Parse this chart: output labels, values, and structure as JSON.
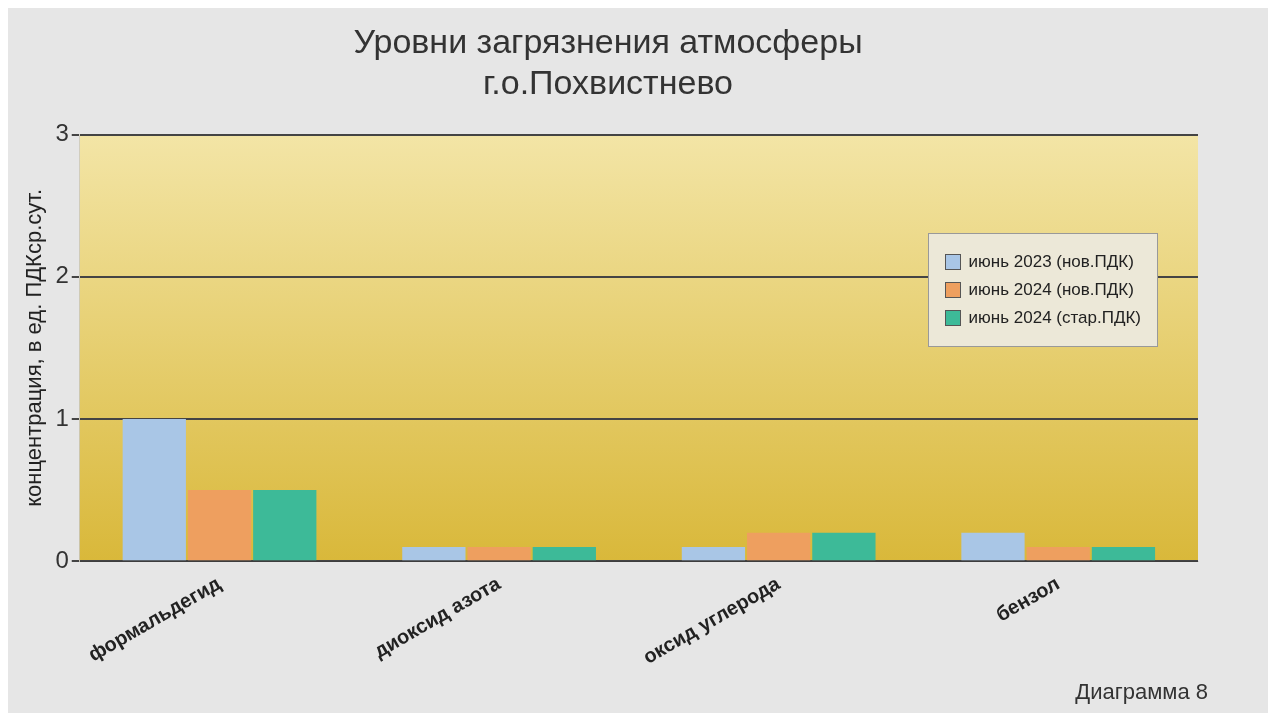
{
  "chart_data": {
    "type": "bar",
    "title": [
      "Уровни загрязнения атмосферы",
      "г.о.Похвистнево"
    ],
    "ylabel": "концентрация, в ед. ПДКср.сут.",
    "categories": [
      "формальдегид",
      "диоксид азота",
      "оксид углерода",
      "бензол"
    ],
    "series": [
      {
        "name": "июнь 2023 (нов.ПДК)",
        "color": "#a9c6e6",
        "values": [
          1.0,
          0.1,
          0.1,
          0.2
        ]
      },
      {
        "name": "июнь 2024 (нов.ПДК)",
        "color": "#ee9f5f",
        "values": [
          0.5,
          0.1,
          0.2,
          0.1
        ]
      },
      {
        "name": "июнь 2024 (стар.ПДК)",
        "color": "#3dba98",
        "values": [
          0.5,
          0.1,
          0.2,
          0.1
        ]
      }
    ],
    "ylim": [
      0,
      3
    ],
    "yticks": [
      0,
      1,
      2,
      3
    ],
    "grid": "y",
    "legend": "top right",
    "annotations": [
      "Диаграмма 8"
    ]
  }
}
